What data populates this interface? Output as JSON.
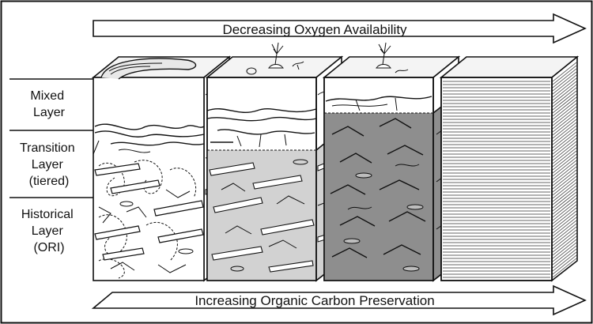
{
  "top_arrow": {
    "label": "Decreasing Oxygen Availability"
  },
  "bottom_arrow": {
    "label": "Increasing Organic Carbon Preservation"
  },
  "layers": [
    {
      "lines": [
        "Mixed",
        "Layer"
      ]
    },
    {
      "lines": [
        "Transition",
        "Layer",
        "(tiered)"
      ]
    },
    {
      "lines": [
        "Historical",
        "Layer",
        "(ORI)"
      ]
    }
  ],
  "colors": {
    "outline": "#111111",
    "transition_fill": "#d2d2d2",
    "low_oxygen_fill": "#8e8e8e",
    "top_face": "#f4f4f4"
  }
}
